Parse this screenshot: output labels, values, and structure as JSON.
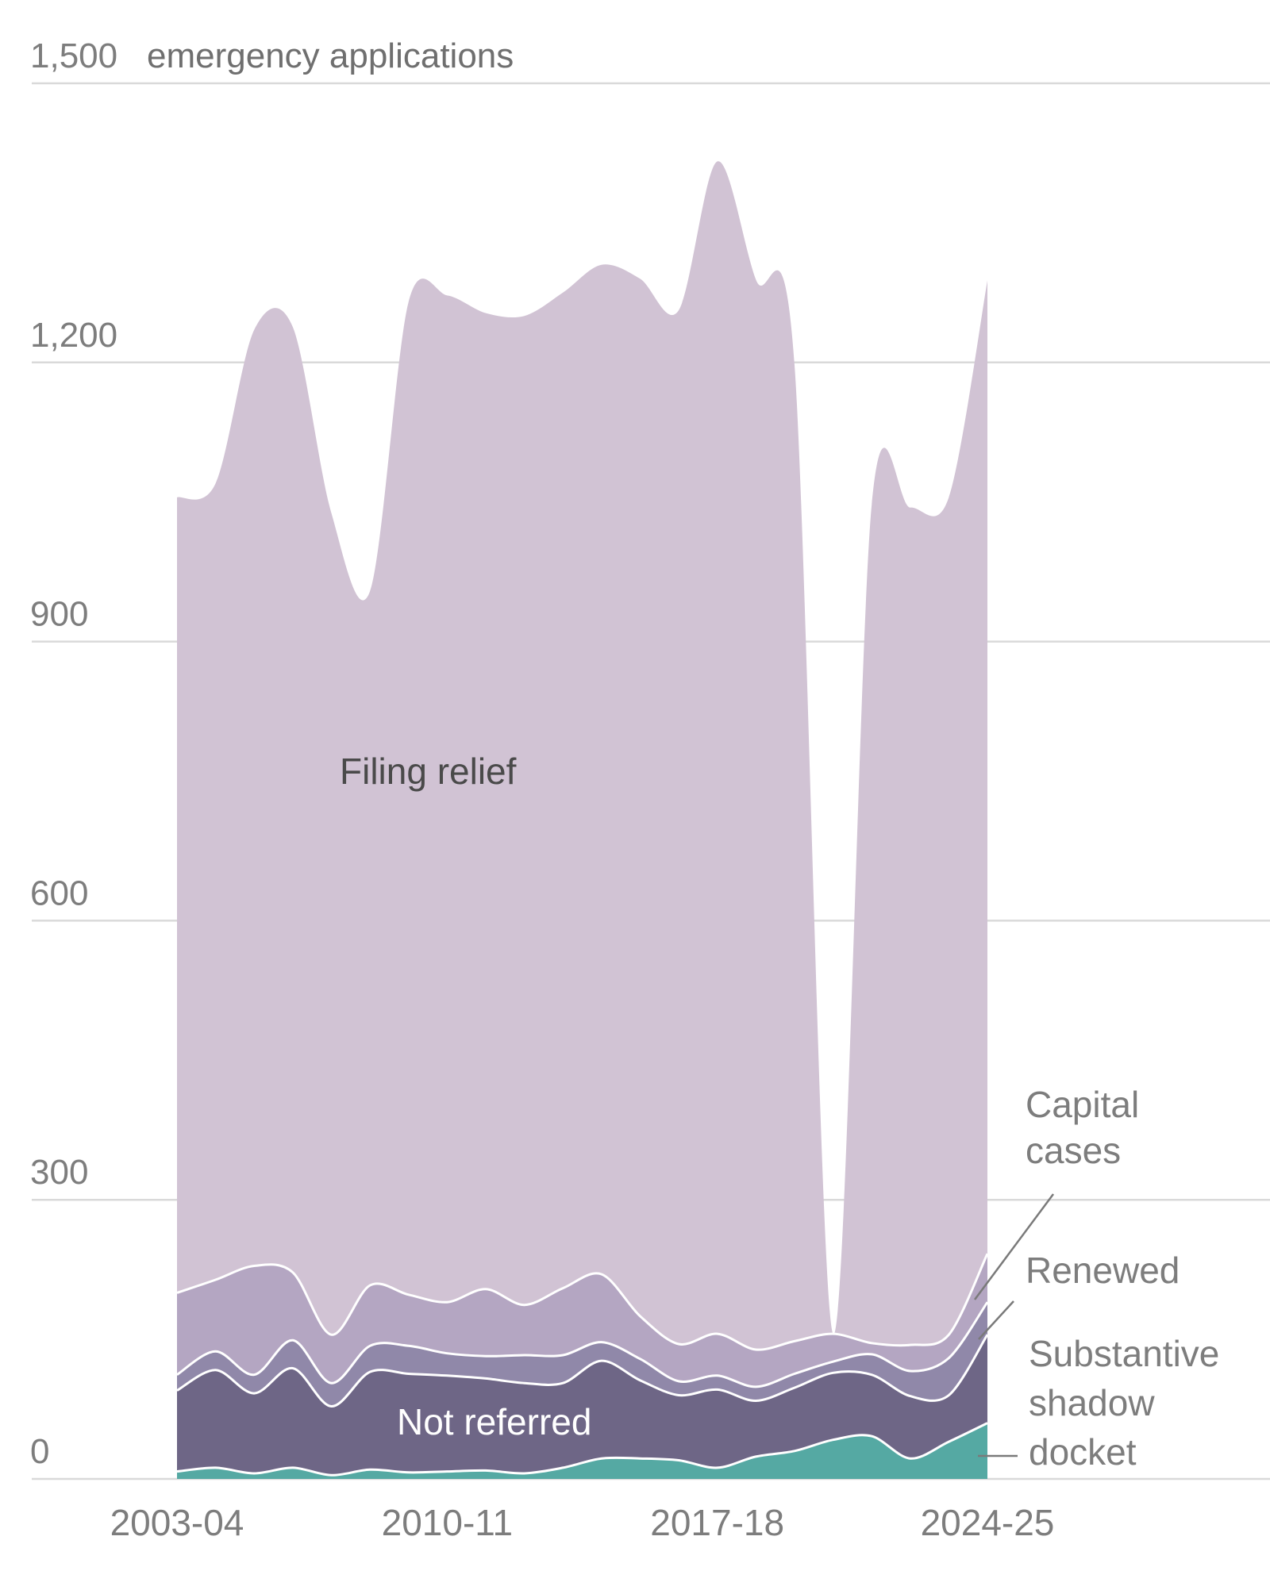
{
  "chart_data": {
    "type": "area",
    "stacked": true,
    "unit_label": "emergency applications",
    "x": [
      "2003-04",
      "2004-05",
      "2005-06",
      "2006-07",
      "2007-08",
      "2008-09",
      "2009-10",
      "2010-11",
      "2011-12",
      "2012-13",
      "2013-14",
      "2014-15",
      "2015-16",
      "2016-17",
      "2017-18",
      "2018-19",
      "2019-20",
      "2020-21",
      "2021-22",
      "2022-23",
      "2023-24",
      "2024-25"
    ],
    "x_ticks": [
      "2003-04",
      "2010-11",
      "2017-18",
      "2024-25"
    ],
    "y_ticks": [
      0,
      300,
      600,
      900,
      1200,
      1500
    ],
    "y_tick_labels": [
      "0",
      "300",
      "600",
      "900",
      "1,200",
      "1,500"
    ],
    "ylim": [
      0,
      1500
    ],
    "grid": true,
    "series": [
      {
        "name": "Substantive shadow docket",
        "color": "#55a9a3",
        "label_color": "#7d7d7d",
        "values": [
          8,
          12,
          6,
          12,
          4,
          10,
          7,
          8,
          9,
          6,
          12,
          22,
          22,
          20,
          12,
          24,
          30,
          42,
          46,
          22,
          40,
          60
        ]
      },
      {
        "name": "Not referred",
        "color": "#6e6686",
        "label_color": "#ffffff",
        "values": [
          87,
          105,
          86,
          107,
          74,
          105,
          106,
          103,
          99,
          97,
          91,
          105,
          84,
          70,
          84,
          60,
          68,
          72,
          66,
          67,
          50,
          95
        ]
      },
      {
        "name": "Renewed",
        "color": "#9088a9",
        "label_color": "#7d7d7d",
        "values": [
          17,
          20,
          20,
          30,
          25,
          28,
          30,
          24,
          24,
          30,
          30,
          20,
          23,
          15,
          15,
          15,
          15,
          12,
          22,
          27,
          40,
          35
        ]
      },
      {
        "name": "Capital cases",
        "color": "#b4a6c2",
        "label_color": "#7d7d7d",
        "values": [
          88,
          77,
          117,
          73,
          52,
          65,
          55,
          55,
          72,
          54,
          72,
          73,
          46,
          40,
          45,
          40,
          35,
          30,
          12,
          28,
          25,
          52
        ]
      },
      {
        "name": "Filing relief",
        "color": "#d1c3d4",
        "label_color": "#4a4a4a",
        "values": [
          855,
          856,
          1006,
          1016,
          883,
          746,
          1067,
          1082,
          1049,
          1063,
          1070,
          1085,
          1115,
          1111,
          1260,
          1150,
          1050,
          0,
          900,
          900,
          900,
          1046
        ]
      }
    ],
    "totals_note": "",
    "annotations": [
      {
        "series": "Filing relief",
        "text": "Filing relief"
      },
      {
        "series": "Not referred",
        "text": "Not referred"
      }
    ],
    "side_labels": [
      {
        "series": "Capital cases",
        "lines": [
          "Capital",
          "cases"
        ]
      },
      {
        "series": "Renewed",
        "lines": [
          "Renewed"
        ]
      },
      {
        "series": "Substantive shadow docket",
        "lines": [
          "Substantive",
          "shadow",
          "docket"
        ]
      }
    ]
  }
}
